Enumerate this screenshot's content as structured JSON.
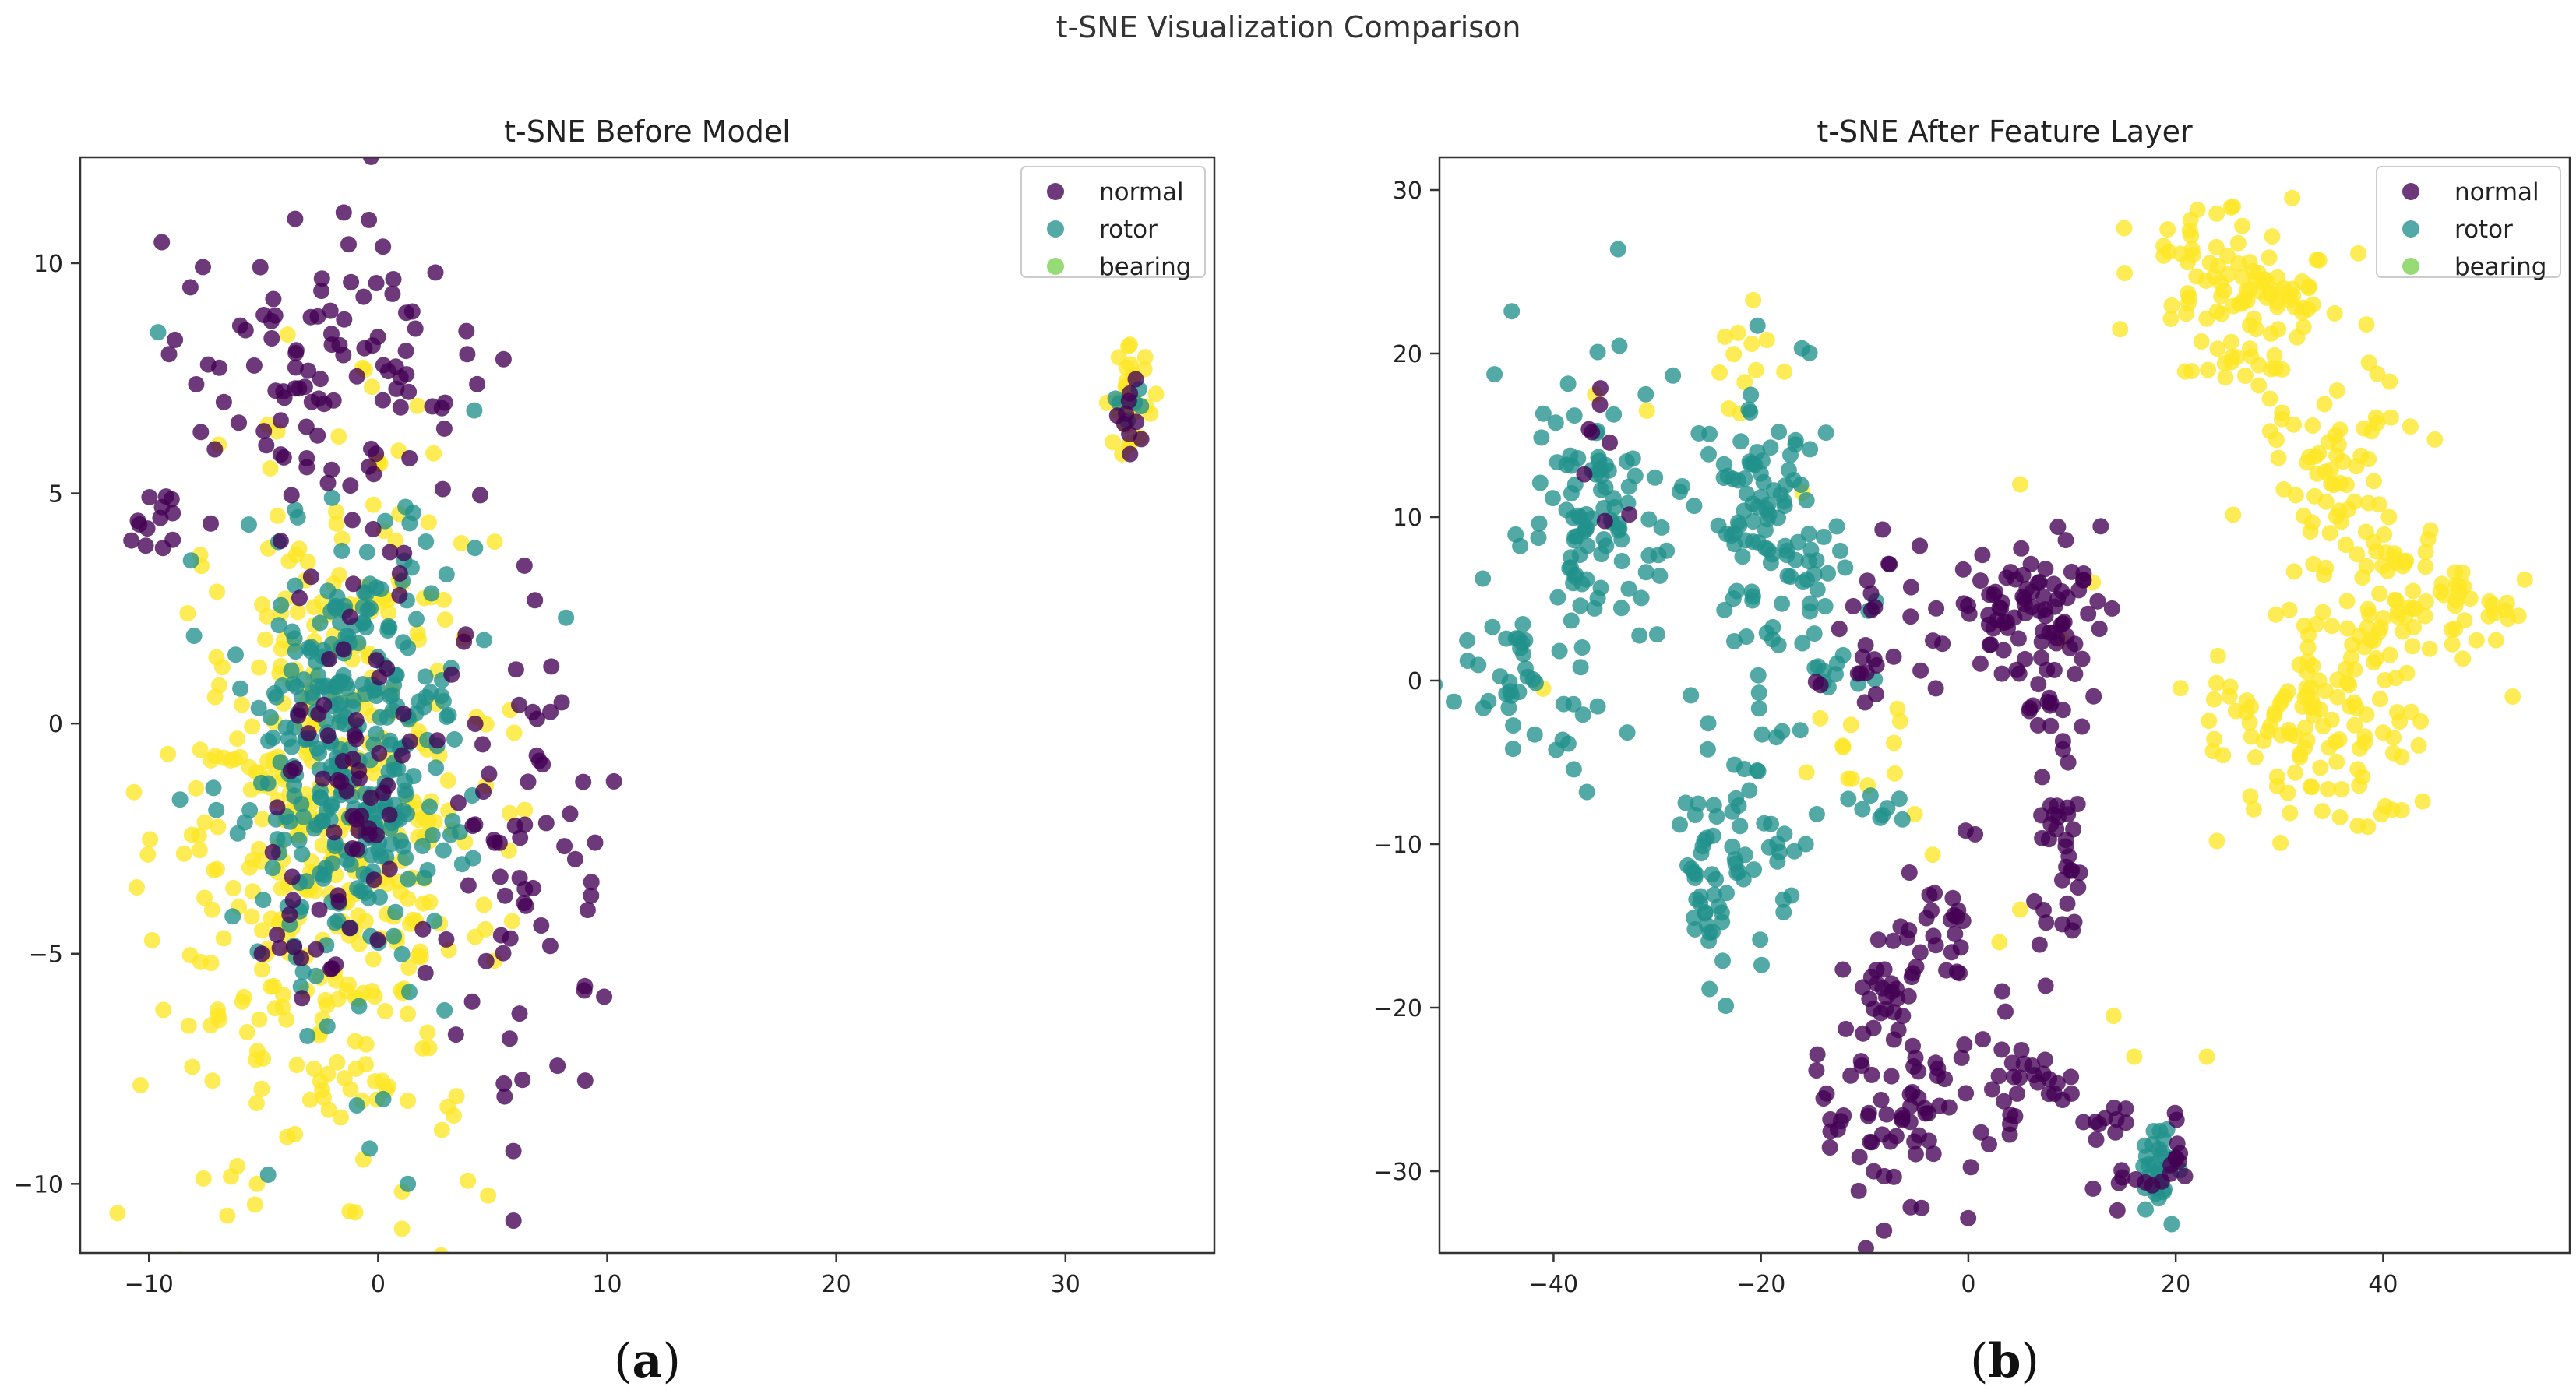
{
  "figure": {
    "title": "t-SNE Visualization Comparison"
  },
  "colors": {
    "normal": "#440154",
    "rotor": "#21918c",
    "bearing": "#fde725",
    "legend_bearing": "#7ad151"
  },
  "chart_data": [
    {
      "type": "scatter",
      "title": "t-SNE Before Model",
      "panel_label": "a",
      "xlabel": "",
      "ylabel": "",
      "xlim": [
        -13,
        36.5
      ],
      "ylim": [
        -11.5,
        12.3
      ],
      "xticks": [
        -10,
        0,
        10,
        20,
        30
      ],
      "yticks": [
        -10,
        -5,
        0,
        5,
        10
      ],
      "legend": [
        "normal",
        "rotor",
        "bearing"
      ],
      "legend_position": "upper right",
      "series": [
        {
          "name": "bearing",
          "clusters": [
            {
              "cx": -2.0,
              "cy": -2.5,
              "sx": 3.6,
              "sy": 4.0,
              "n": 430
            },
            {
              "cx": 32.8,
              "cy": 7.0,
              "sx": 0.45,
              "sy": 0.55,
              "n": 30
            }
          ]
        },
        {
          "name": "rotor",
          "clusters": [
            {
              "cx": -1.0,
              "cy": -0.5,
              "sx": 2.4,
              "sy": 2.6,
              "n": 330
            },
            {
              "cx": 32.8,
              "cy": 7.0,
              "sx": 0.3,
              "sy": 0.3,
              "n": 6
            }
          ],
          "points": [
            [
              -9.6,
              8.5
            ],
            [
              8.2,
              2.3
            ],
            [
              4.2,
              6.8
            ],
            [
              -4.8,
              -9.8
            ],
            [
              1.3,
              -10.0
            ]
          ]
        },
        {
          "name": "normal",
          "clusters": [
            {
              "cx": -2.0,
              "cy": 7.5,
              "sx": 3.0,
              "sy": 1.8,
              "n": 110
            },
            {
              "cx": -9.8,
              "cy": 4.5,
              "sx": 0.6,
              "sy": 0.5,
              "n": 12
            },
            {
              "cx": 6.5,
              "cy": -3.0,
              "sx": 2.0,
              "sy": 2.6,
              "n": 70
            },
            {
              "cx": -1.0,
              "cy": -1.5,
              "sx": 2.0,
              "sy": 2.0,
              "n": 60
            },
            {
              "cx": -3.5,
              "cy": -5.0,
              "sx": 0.8,
              "sy": 0.4,
              "n": 10
            },
            {
              "cx": 32.8,
              "cy": 6.7,
              "sx": 0.25,
              "sy": 0.45,
              "n": 10
            }
          ],
          "points": [
            [
              -1.5,
              11.1
            ]
          ]
        }
      ]
    },
    {
      "type": "scatter",
      "title": "t-SNE After Feature Layer",
      "panel_label": "b",
      "xlabel": "",
      "ylabel": "",
      "xlim": [
        -51,
        58
      ],
      "ylim": [
        -35,
        32
      ],
      "xticks": [
        -40,
        -20,
        0,
        20,
        40
      ],
      "yticks": [
        -30,
        -20,
        -10,
        0,
        10,
        20,
        30
      ],
      "legend": [
        "normal",
        "rotor",
        "bearing"
      ],
      "legend_position": "upper right",
      "series": [
        {
          "name": "bearing",
          "clusters": [
            {
              "cx": 26,
              "cy": 24,
              "sx": 4.5,
              "sy": 3.0,
              "n": 110
            },
            {
              "cx": 34,
              "cy": 15,
              "sx": 4.0,
              "sy": 3.0,
              "n": 50
            },
            {
              "cx": 40,
              "cy": 6,
              "sx": 3.5,
              "sy": 3.5,
              "n": 70
            },
            {
              "cx": 34,
              "cy": -3,
              "sx": 5.5,
              "sy": 3.5,
              "n": 120
            },
            {
              "cx": 49,
              "cy": 4,
              "sx": 2.0,
              "sy": 1.5,
              "n": 25
            },
            {
              "cx": -21,
              "cy": 20,
              "sx": 2.0,
              "sy": 2.0,
              "n": 12
            },
            {
              "cx": -10,
              "cy": -5,
              "sx": 3.0,
              "sy": 2.0,
              "n": 14
            }
          ],
          "points": [
            [
              -36,
              17.5
            ],
            [
              -31,
              16.5
            ],
            [
              -16,
              11.5
            ],
            [
              5,
              12
            ],
            [
              12,
              6
            ],
            [
              14,
              -20.5
            ],
            [
              16,
              -23
            ],
            [
              23,
              -23
            ],
            [
              5,
              -14
            ],
            [
              3,
              -16
            ],
            [
              9,
              2.5
            ],
            [
              -41,
              -0.5
            ]
          ]
        },
        {
          "name": "rotor",
          "clusters": [
            {
              "cx": -37,
              "cy": 9,
              "sx": 3.5,
              "sy": 5.5,
              "n": 110
            },
            {
              "cx": -43,
              "cy": 0,
              "sx": 2.5,
              "sy": 2.0,
              "n": 30
            },
            {
              "cx": -20,
              "cy": 10,
              "sx": 3.0,
              "sy": 5.0,
              "n": 90
            },
            {
              "cx": -14,
              "cy": 5,
              "sx": 3.0,
              "sy": 3.0,
              "n": 35
            },
            {
              "cx": -23,
              "cy": -9,
              "sx": 3.0,
              "sy": 3.0,
              "n": 55
            },
            {
              "cx": -25,
              "cy": -15,
              "sx": 1.5,
              "sy": 2.5,
              "n": 20
            },
            {
              "cx": 18.5,
              "cy": -30,
              "sx": 0.9,
              "sy": 1.4,
              "n": 30
            },
            {
              "cx": -9,
              "cy": -8,
              "sx": 1.5,
              "sy": 0.8,
              "n": 8
            }
          ]
        },
        {
          "name": "normal",
          "clusters": [
            {
              "cx": 3,
              "cy": 4,
              "sx": 3.5,
              "sy": 2.5,
              "n": 60
            },
            {
              "cx": 9,
              "cy": 3,
              "sx": 2.5,
              "sy": 3.0,
              "n": 40
            },
            {
              "cx": -9,
              "cy": 3,
              "sx": 2.5,
              "sy": 3.5,
              "n": 25
            },
            {
              "cx": 9,
              "cy": -11,
              "sx": 1.5,
              "sy": 3.5,
              "n": 35
            },
            {
              "cx": -8,
              "cy": -18,
              "sx": 2.0,
              "sy": 2.5,
              "n": 30
            },
            {
              "cx": -2,
              "cy": -16,
              "sx": 1.5,
              "sy": 3.5,
              "n": 25
            },
            {
              "cx": -7,
              "cy": -27,
              "sx": 3.5,
              "sy": 2.5,
              "n": 60
            },
            {
              "cx": 4,
              "cy": -25,
              "sx": 3.0,
              "sy": 2.0,
              "n": 35
            },
            {
              "cx": 14,
              "cy": -27,
              "sx": 1.5,
              "sy": 1.5,
              "n": 10
            },
            {
              "cx": 16,
              "cy": -31,
              "sx": 1.5,
              "sy": 0.5,
              "n": 8
            },
            {
              "cx": 19.8,
              "cy": -29.5,
              "sx": 0.5,
              "sy": 1.5,
              "n": 10
            },
            {
              "cx": -35,
              "cy": 15,
              "sx": 1.5,
              "sy": 2.0,
              "n": 8
            }
          ]
        }
      ]
    }
  ]
}
